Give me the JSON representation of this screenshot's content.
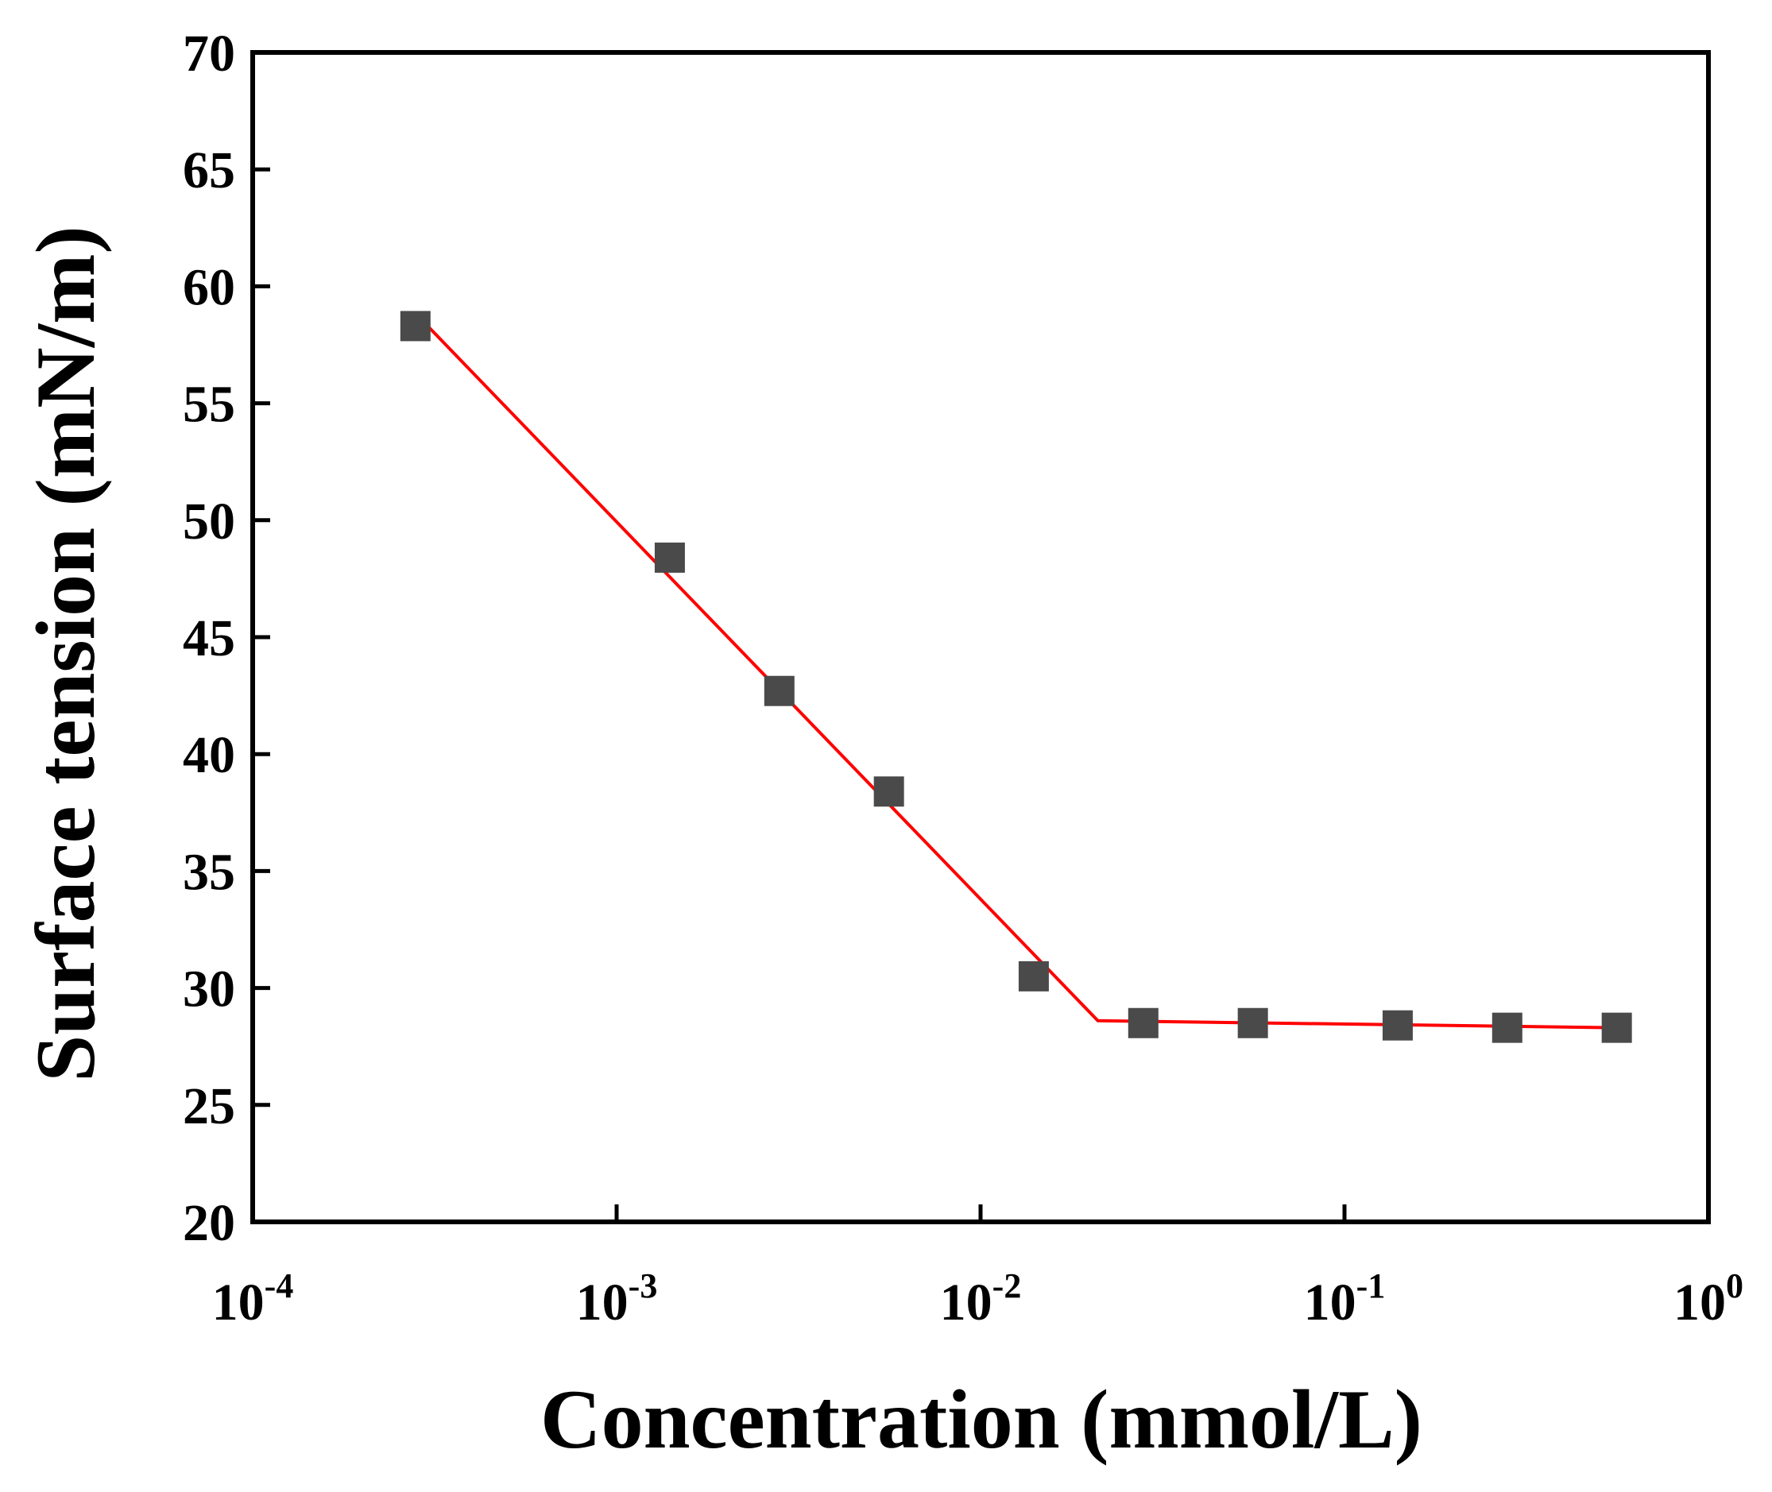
{
  "chart_data": {
    "type": "scatter",
    "xlabel": "Concentration (mmol/L)",
    "ylabel": "Surface tension (mN/m)",
    "x_scale": "log",
    "xlim": [
      0.0001,
      1
    ],
    "ylim": [
      20,
      70
    ],
    "x_ticks": [
      {
        "base": "10",
        "exp": "-4",
        "value": 0.0001
      },
      {
        "base": "10",
        "exp": "-3",
        "value": 0.001
      },
      {
        "base": "10",
        "exp": "-2",
        "value": 0.01
      },
      {
        "base": "10",
        "exp": "-1",
        "value": 0.1
      },
      {
        "base": "10",
        "exp": "0",
        "value": 1
      }
    ],
    "y_ticks": [
      "20",
      "25",
      "30",
      "35",
      "40",
      "45",
      "50",
      "55",
      "60",
      "65",
      "70"
    ],
    "grid": false,
    "series": [
      {
        "marker": "square",
        "color": "#4a4a4a",
        "points": [
          {
            "x": 0.00028,
            "y": 58.3
          },
          {
            "x": 0.0014,
            "y": 48.4
          },
          {
            "x": 0.0028,
            "y": 42.7
          },
          {
            "x": 0.0056,
            "y": 38.4
          },
          {
            "x": 0.014,
            "y": 30.5
          },
          {
            "x": 0.028,
            "y": 28.5
          },
          {
            "x": 0.056,
            "y": 28.5
          },
          {
            "x": 0.14,
            "y": 28.4
          },
          {
            "x": 0.28,
            "y": 28.3
          },
          {
            "x": 0.56,
            "y": 28.3
          }
        ]
      }
    ],
    "fit_line": {
      "color": "#ff0000",
      "points": [
        {
          "x": 0.00029,
          "y": 58.6
        },
        {
          "x": 0.021,
          "y": 28.6
        },
        {
          "x": 0.56,
          "y": 28.3
        }
      ]
    }
  }
}
